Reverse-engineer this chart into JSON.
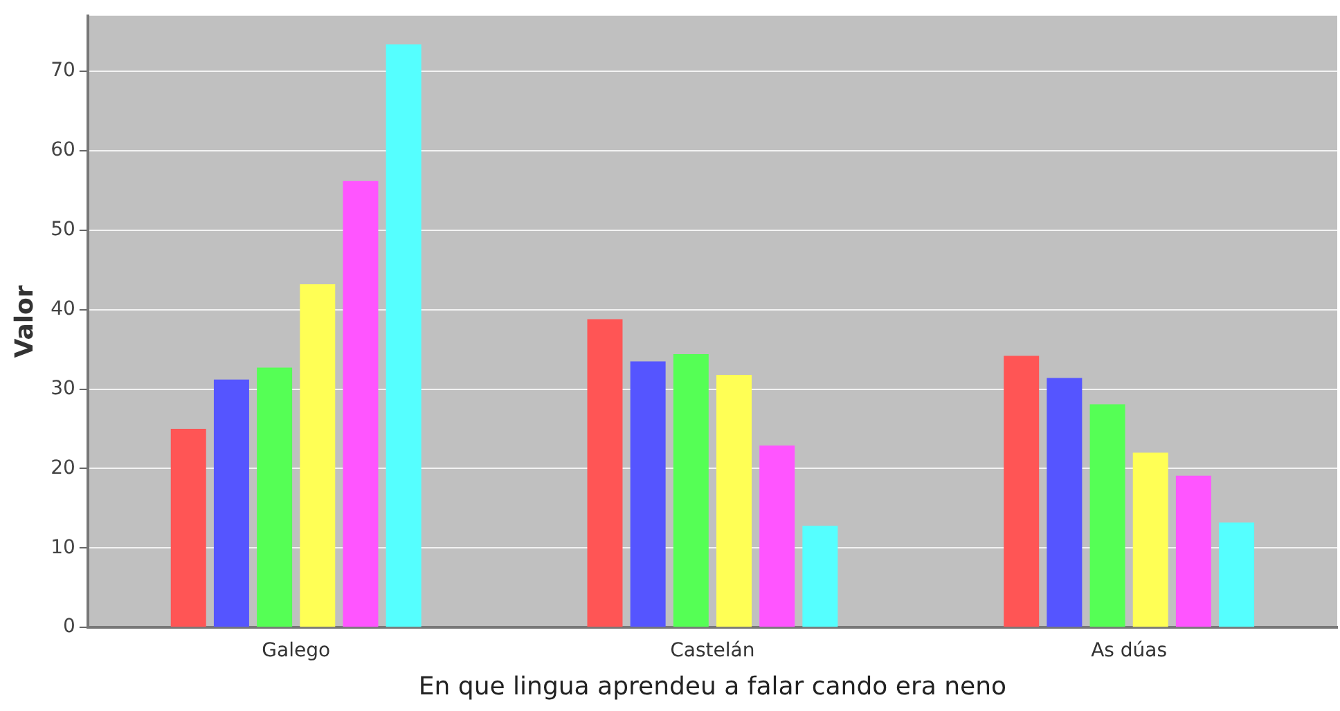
{
  "chart_data": {
    "type": "bar",
    "xlabel": "En que lingua aprendeu a falar cando era neno",
    "ylabel": "Valor",
    "categories": [
      "Galego",
      "Castelán",
      "As dúas"
    ],
    "series": [
      {
        "color": "#ff5555",
        "values": [
          25.0,
          38.8,
          34.2
        ]
      },
      {
        "color": "#5555ff",
        "values": [
          31.2,
          33.5,
          31.4
        ]
      },
      {
        "color": "#55ff55",
        "values": [
          32.7,
          34.4,
          28.1
        ]
      },
      {
        "color": "#ffff55",
        "values": [
          43.2,
          31.8,
          22.0
        ]
      },
      {
        "color": "#ff55ff",
        "values": [
          56.2,
          22.9,
          19.1
        ]
      },
      {
        "color": "#55ffff",
        "values": [
          73.4,
          12.8,
          13.2
        ]
      }
    ],
    "ylim": [
      0,
      77
    ],
    "yticks": [
      0,
      10,
      20,
      30,
      40,
      50,
      60,
      70
    ],
    "grid": "y",
    "legend": false
  }
}
